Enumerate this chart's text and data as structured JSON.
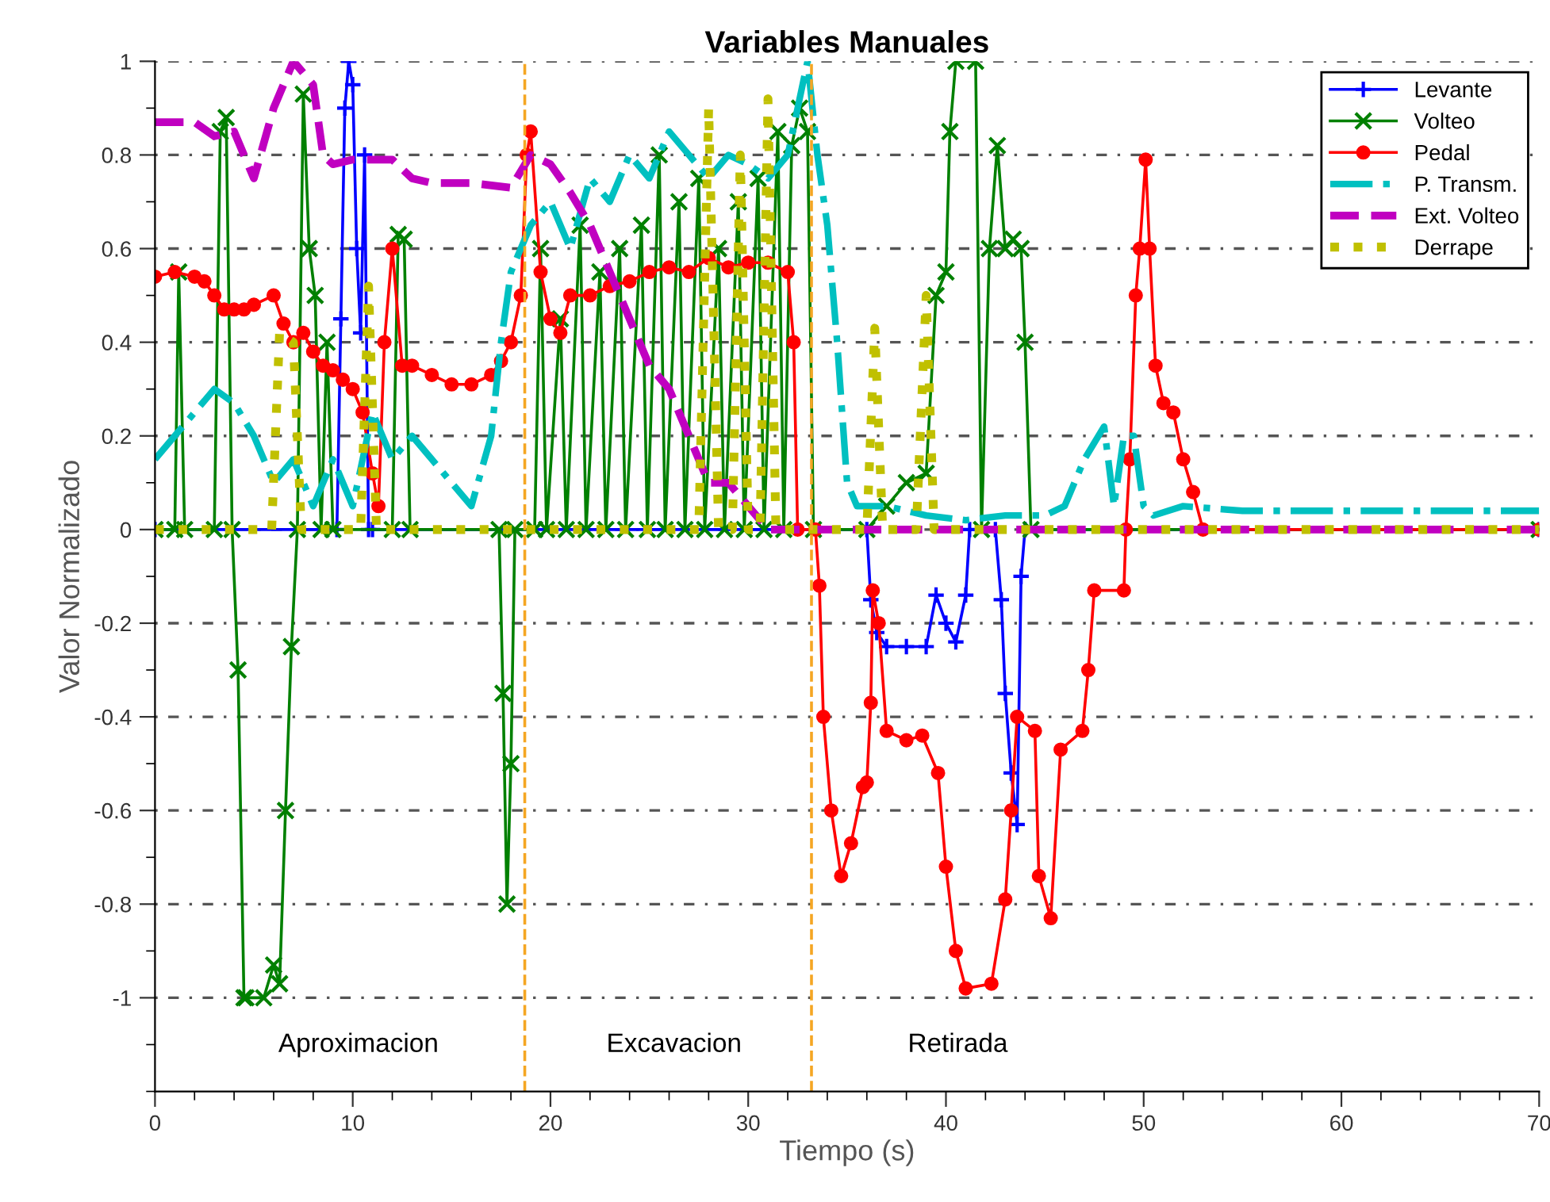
{
  "chart_data": {
    "type": "line",
    "title": "Variables Manuales",
    "xlabel": "Tiempo (s)",
    "ylabel": "Valor Normalizado",
    "xlim": [
      0,
      70
    ],
    "ylim": [
      -1.2,
      1
    ],
    "xticks": [
      0,
      {
        "value": 2,
        "label": null
      },
      {
        "value": 4,
        "label": null
      },
      {
        "value": 6,
        "label": null
      },
      {
        "value": 8,
        "label": null
      },
      10,
      {
        "value": 12,
        "label": null
      },
      {
        "value": 14,
        "label": null
      },
      {
        "value": 16,
        "label": null
      },
      {
        "value": 18,
        "label": null
      },
      20,
      {
        "value": 22,
        "label": null
      },
      {
        "value": 24,
        "label": null
      },
      {
        "value": 26,
        "label": null
      },
      {
        "value": 28,
        "label": null
      },
      30,
      {
        "value": 32,
        "label": null
      },
      {
        "value": 34,
        "label": null
      },
      {
        "value": 36,
        "label": null
      },
      {
        "value": 38,
        "label": null
      },
      40,
      {
        "value": 42,
        "label": null
      },
      {
        "value": 44,
        "label": null
      },
      {
        "value": 46,
        "label": null
      },
      {
        "value": 48,
        "label": null
      },
      50,
      {
        "value": 52,
        "label": null
      },
      {
        "value": 54,
        "label": null
      },
      {
        "value": 56,
        "label": null
      },
      {
        "value": 58,
        "label": null
      },
      60,
      {
        "value": 62,
        "label": null
      },
      {
        "value": 64,
        "label": null
      },
      {
        "value": 66,
        "label": null
      },
      {
        "value": 68,
        "label": null
      },
      70
    ],
    "yticks": [
      {
        "value": -1.2,
        "label": null
      },
      {
        "value": -1.1,
        "label": null
      },
      -1,
      {
        "value": -0.9,
        "label": null
      },
      -0.8,
      {
        "value": -0.7,
        "label": null
      },
      -0.6,
      {
        "value": -0.5,
        "label": null
      },
      -0.4,
      {
        "value": -0.3,
        "label": null
      },
      -0.2,
      {
        "value": -0.1,
        "label": null
      },
      0,
      {
        "value": 0.1,
        "label": null
      },
      0.2,
      {
        "value": 0.3,
        "label": null
      },
      0.4,
      {
        "value": 0.5,
        "label": null
      },
      0.6,
      {
        "value": 0.7,
        "label": null
      },
      0.8,
      {
        "value": 0.9,
        "label": null
      },
      1
    ],
    "grid": "y",
    "legend": "top right",
    "ref_lines": [
      {
        "axis": "x",
        "value": 18.7,
        "color": "#f5a623",
        "line_style": "dashed"
      },
      {
        "axis": "x",
        "value": 33.2,
        "color": "#f5a623",
        "line_style": "dashed"
      }
    ],
    "annotations": [
      "Aproximacion",
      "Excavacion",
      "Retirada"
    ],
    "series": [
      {
        "name": "Levante",
        "color": "#0000ff",
        "marker": "plus",
        "line_style": "solid",
        "x": [
          0,
          9.2,
          9.4,
          9.6,
          9.8,
          10,
          10.2,
          10.4,
          10.6,
          10.8,
          11,
          36,
          36.2,
          36.5,
          37,
          38,
          39,
          39.5,
          40,
          40.5,
          41,
          41.2,
          42.5,
          42.8,
          43,
          43.3,
          43.6,
          43.8,
          44,
          70
        ],
        "values": [
          0,
          0,
          0.45,
          0.9,
          1,
          0.95,
          0.6,
          0.42,
          0.8,
          0,
          0,
          0,
          -0.15,
          -0.22,
          -0.25,
          -0.25,
          -0.25,
          -0.14,
          -0.2,
          -0.24,
          -0.14,
          0,
          0,
          -0.15,
          -0.35,
          -0.52,
          -0.63,
          -0.1,
          0,
          0
        ]
      },
      {
        "name": "Volteo",
        "color": "#008000",
        "marker": "cross",
        "line_style": "solid",
        "x": [
          0,
          1.0,
          1.2,
          1.5,
          3.0,
          3.3,
          3.6,
          3.9,
          4.2,
          4.5,
          4.6,
          5.5,
          6.0,
          6.3,
          6.6,
          6.9,
          7.2,
          7.5,
          7.8,
          8.1,
          8.4,
          8.7,
          9.0,
          12.0,
          12.3,
          12.6,
          12.9,
          17.4,
          17.6,
          17.8,
          18.0,
          18.2,
          19.2,
          19.5,
          19.8,
          20.5,
          20.8,
          21.5,
          21.8,
          22.5,
          22.8,
          23.5,
          23.8,
          24.6,
          24.9,
          25.5,
          25.8,
          26.5,
          26.8,
          27.5,
          27.8,
          28.5,
          28.8,
          29.5,
          29.8,
          30.5,
          30.8,
          31.5,
          31.8,
          32.2,
          32.6,
          33.0,
          33.3,
          36,
          37,
          38,
          39,
          39.5,
          40,
          40.2,
          40.5,
          41.5,
          41.8,
          42.2,
          42.6,
          43,
          43.4,
          43.8,
          44,
          44.3,
          70
        ],
        "values": [
          0,
          0,
          0.55,
          0,
          0,
          0.85,
          0.88,
          0,
          -0.3,
          -1,
          -1,
          -1,
          -0.93,
          -0.97,
          -0.6,
          -0.25,
          0,
          0.93,
          0.6,
          0.5,
          0,
          0.4,
          0,
          0,
          0.63,
          0.62,
          0,
          0,
          -0.35,
          -0.8,
          -0.5,
          0,
          0,
          0.6,
          0,
          0.45,
          0,
          0.65,
          0,
          0.55,
          0,
          0.6,
          0,
          0.65,
          0,
          0.8,
          0,
          0.7,
          0,
          0.75,
          0,
          0.6,
          0,
          0.7,
          0,
          0.75,
          0,
          0.85,
          0,
          0.82,
          0.9,
          0.85,
          0,
          0,
          0.05,
          0.1,
          0.12,
          0.5,
          0.55,
          0.85,
          1,
          1,
          0,
          0.6,
          0.82,
          0.6,
          0.62,
          0.6,
          0.4,
          0,
          0
        ]
      },
      {
        "name": "Pedal",
        "color": "#ff0000",
        "marker": "circle",
        "line_style": "solid",
        "x": [
          0,
          1,
          2,
          2.5,
          3,
          3.5,
          4,
          4.5,
          5,
          6,
          6.5,
          7,
          7.5,
          8,
          8.5,
          9,
          9.5,
          10,
          10.5,
          11,
          11.3,
          11.6,
          12,
          12.5,
          13,
          14,
          15,
          16,
          17,
          17.5,
          18,
          18.5,
          18.8,
          19,
          19.5,
          20,
          20.5,
          21,
          22,
          23,
          24,
          25,
          26,
          27,
          28,
          29,
          30,
          31,
          32,
          32.3,
          32.5,
          33.4,
          33.6,
          33.8,
          34.2,
          34.7,
          35.2,
          35.8,
          36,
          36.2,
          36.3,
          36.6,
          37,
          38,
          38.8,
          39.6,
          40,
          40.5,
          41,
          42.3,
          43,
          43.3,
          43.6,
          44.5,
          44.7,
          45.3,
          45.8,
          46.9,
          47.2,
          47.5,
          49,
          49.1,
          49.3,
          49.6,
          49.8,
          50.1,
          50.3,
          50.6,
          51,
          51.5,
          52,
          52.5,
          53,
          70
        ],
        "values": [
          0.54,
          0.55,
          0.54,
          0.53,
          0.5,
          0.47,
          0.47,
          0.47,
          0.48,
          0.5,
          0.44,
          0.4,
          0.42,
          0.38,
          0.35,
          0.34,
          0.32,
          0.3,
          0.25,
          0.12,
          0.05,
          0.4,
          0.6,
          0.35,
          0.35,
          0.33,
          0.31,
          0.31,
          0.33,
          0.36,
          0.4,
          0.5,
          0.8,
          0.85,
          0.55,
          0.45,
          0.42,
          0.5,
          0.5,
          0.52,
          0.53,
          0.55,
          0.56,
          0.55,
          0.58,
          0.56,
          0.57,
          0.57,
          0.55,
          0.4,
          0,
          0,
          -0.12,
          -0.4,
          -0.6,
          -0.74,
          -0.67,
          -0.55,
          -0.54,
          -0.37,
          -0.13,
          -0.2,
          -0.43,
          -0.45,
          -0.44,
          -0.52,
          -0.72,
          -0.9,
          -0.98,
          -0.97,
          -0.79,
          -0.6,
          -0.4,
          -0.43,
          -0.74,
          -0.83,
          -0.47,
          -0.43,
          -0.3,
          -0.13,
          -0.13,
          0,
          0.15,
          0.5,
          0.6,
          0.79,
          0.6,
          0.35,
          0.27,
          0.25,
          0.15,
          0.08,
          0,
          0
        ]
      },
      {
        "name": "P. Transm.",
        "color": "#00c0c0",
        "marker": "none",
        "line_style": "dashdot",
        "x": [
          0,
          1,
          2,
          3,
          4,
          5,
          6,
          7,
          8,
          9,
          10,
          11,
          12,
          13,
          14,
          15,
          16,
          17,
          17.5,
          18,
          19,
          20,
          21,
          22,
          23,
          24,
          25,
          26,
          27,
          28,
          29,
          30,
          31,
          32,
          33,
          33.5,
          34,
          34.5,
          35,
          35.5,
          37,
          39,
          41,
          43,
          45,
          46,
          47,
          48,
          48.5,
          49,
          49.5,
          50,
          50.5,
          52,
          55,
          60,
          65,
          70
        ],
        "values": [
          0.15,
          0.2,
          0.25,
          0.3,
          0.27,
          0.2,
          0.1,
          0.15,
          0.05,
          0.15,
          0.05,
          0.25,
          0.15,
          0.2,
          0.15,
          0.1,
          0.05,
          0.2,
          0.4,
          0.55,
          0.65,
          0.7,
          0.6,
          0.75,
          0.7,
          0.8,
          0.75,
          0.85,
          0.8,
          0.75,
          0.8,
          0.78,
          0.75,
          0.8,
          1,
          0.8,
          0.65,
          0.4,
          0.1,
          0.05,
          0.05,
          0.03,
          0.02,
          0.03,
          0.03,
          0.05,
          0.15,
          0.22,
          0.05,
          0.2,
          0.2,
          0.05,
          0.03,
          0.05,
          0.04,
          0.04,
          0.04,
          0.04
        ]
      },
      {
        "name": "Ext. Volteo",
        "color": "#c000c0",
        "marker": "none",
        "line_style": "dashed",
        "x": [
          0,
          2,
          3,
          4,
          5,
          6,
          7,
          8,
          8.5,
          9,
          10,
          12,
          13,
          14,
          16,
          18,
          19,
          20,
          21,
          22,
          23,
          24,
          25,
          26,
          27,
          28,
          29,
          30,
          31,
          70
        ],
        "values": [
          0.87,
          0.87,
          0.84,
          0.85,
          0.75,
          0.9,
          1,
          0.95,
          0.8,
          0.78,
          0.79,
          0.79,
          0.75,
          0.74,
          0.74,
          0.73,
          0.8,
          0.78,
          0.72,
          0.65,
          0.55,
          0.45,
          0.35,
          0.3,
          0.2,
          0.1,
          0.1,
          0.05,
          0,
          0
        ]
      },
      {
        "name": "Derrape",
        "color": "#c0c000",
        "marker": "none",
        "line_style": "dotted",
        "x": [
          0,
          5.9,
          6.3,
          7.0,
          7.4,
          10.4,
          10.8,
          11.2,
          27.5,
          28,
          28.5,
          29.2,
          29.6,
          30.0,
          30.6,
          31,
          31.4,
          36,
          36.4,
          36.8,
          38.5,
          39.0,
          39.4,
          70
        ],
        "values": [
          0,
          0,
          0.42,
          0.4,
          0,
          0,
          0.52,
          0,
          0,
          0.9,
          0,
          0,
          0.8,
          0,
          0,
          0.92,
          0,
          0,
          0.43,
          0,
          0,
          0.5,
          0,
          0
        ]
      }
    ]
  }
}
